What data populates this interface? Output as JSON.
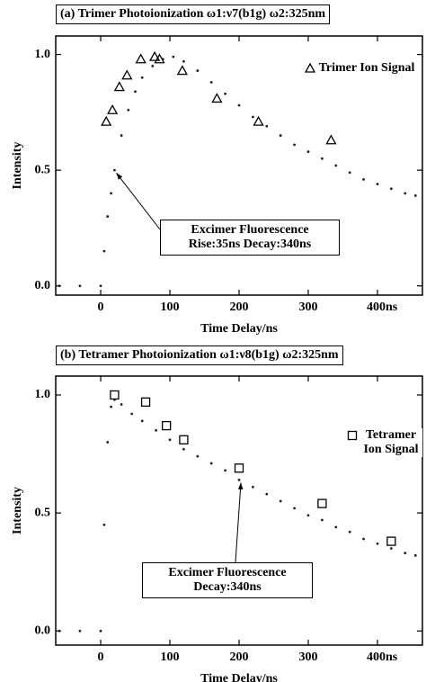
{
  "chart_data": [
    {
      "type": "scatter",
      "title": "(a) Trimer Photoionization ω1:ν7(b1g) ω2:325nm",
      "xlabel": "Time Delay/ns",
      "ylabel": "Intensity",
      "xlim": [
        -65,
        465
      ],
      "xticks": [
        0,
        100,
        200,
        300,
        {
          "value": 400,
          "label": "400ns"
        }
      ],
      "ylim": [
        -0.04,
        1.08
      ],
      "yticks": [
        {
          "value": 0,
          "label": "0.0"
        },
        {
          "value": 0.5,
          "label": "0.5"
        },
        {
          "value": 1,
          "label": "1.0"
        }
      ],
      "legend": "upper right",
      "annotations": [
        {
          "text": "Excimer Fluorescence Rise:35ns Decay:340ns"
        }
      ],
      "series": [
        {
          "color": "#222222",
          "marker": "dot",
          "x": [
            -60,
            -30,
            0,
            5,
            10,
            15,
            20,
            30,
            40,
            50,
            60,
            75,
            90,
            105,
            120,
            140,
            160,
            180,
            200,
            220,
            240,
            260,
            280,
            300,
            320,
            340,
            360,
            380,
            400,
            420,
            440,
            455
          ],
          "values": [
            0,
            0,
            0,
            0.15,
            0.3,
            0.4,
            0.5,
            0.65,
            0.76,
            0.84,
            0.9,
            0.95,
            0.98,
            0.99,
            0.97,
            0.93,
            0.88,
            0.83,
            0.78,
            0.73,
            0.69,
            0.65,
            0.61,
            0.58,
            0.55,
            0.52,
            0.49,
            0.46,
            0.44,
            0.42,
            0.4,
            0.39
          ]
        },
        {
          "name": "Trimer Ion Signal",
          "color": "#000000",
          "marker": "triangle",
          "x": [
            8,
            17,
            27,
            38,
            58,
            78,
            85,
            118,
            168,
            228,
            333
          ],
          "values": [
            0.71,
            0.76,
            0.86,
            0.91,
            0.98,
            0.99,
            0.98,
            0.93,
            0.81,
            0.71,
            0.63
          ]
        }
      ]
    },
    {
      "type": "scatter",
      "title": "(b) Tetramer Photoionization ω1:ν8(b1g) ω2:325nm",
      "xlabel": "Time Delay/ns",
      "ylabel": "Intensity",
      "xlim": [
        -65,
        465
      ],
      "xticks": [
        0,
        100,
        200,
        300,
        {
          "value": 400,
          "label": "400ns"
        }
      ],
      "ylim": [
        -0.06,
        1.08
      ],
      "yticks": [
        {
          "value": 0,
          "label": "0.0"
        },
        {
          "value": 0.5,
          "label": "0.5"
        },
        {
          "value": 1,
          "label": "1.0"
        }
      ],
      "legend": "upper right",
      "annotations": [
        {
          "text": "Excimer Fluorescence Decay:340ns"
        }
      ],
      "series": [
        {
          "color": "#222222",
          "marker": "dot",
          "x": [
            -60,
            -30,
            0,
            5,
            10,
            15,
            20,
            30,
            45,
            60,
            80,
            100,
            120,
            140,
            160,
            180,
            200,
            220,
            240,
            260,
            280,
            300,
            320,
            340,
            360,
            380,
            400,
            420,
            440,
            455
          ],
          "values": [
            0,
            0,
            0,
            0.45,
            0.8,
            0.95,
            0.98,
            0.96,
            0.92,
            0.89,
            0.85,
            0.81,
            0.77,
            0.74,
            0.71,
            0.68,
            0.64,
            0.61,
            0.58,
            0.55,
            0.52,
            0.49,
            0.47,
            0.44,
            0.42,
            0.39,
            0.37,
            0.35,
            0.33,
            0.32
          ]
        },
        {
          "name": "Tetramer Ion Signal",
          "color": "#000000",
          "marker": "square",
          "x": [
            20,
            65,
            95,
            120,
            200,
            320,
            420
          ],
          "values": [
            1.0,
            0.97,
            0.87,
            0.81,
            0.69,
            0.54,
            0.38
          ]
        }
      ]
    }
  ]
}
